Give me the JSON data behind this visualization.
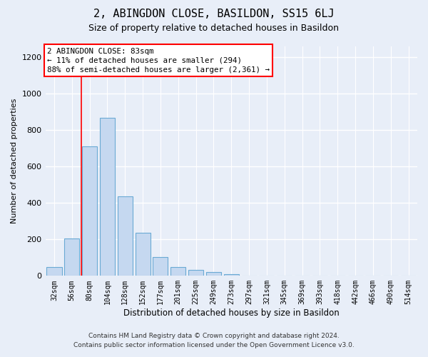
{
  "title": "2, ABINGDON CLOSE, BASILDON, SS15 6LJ",
  "subtitle": "Size of property relative to detached houses in Basildon",
  "xlabel": "Distribution of detached houses by size in Basildon",
  "ylabel": "Number of detached properties",
  "footer_line1": "Contains HM Land Registry data © Crown copyright and database right 2024.",
  "footer_line2": "Contains public sector information licensed under the Open Government Licence v3.0.",
  "categories": [
    "32sqm",
    "56sqm",
    "80sqm",
    "104sqm",
    "128sqm",
    "152sqm",
    "177sqm",
    "201sqm",
    "225sqm",
    "249sqm",
    "273sqm",
    "297sqm",
    "321sqm",
    "345sqm",
    "369sqm",
    "393sqm",
    "418sqm",
    "442sqm",
    "466sqm",
    "490sqm",
    "514sqm"
  ],
  "values": [
    48,
    207,
    710,
    868,
    435,
    235,
    104,
    48,
    33,
    22,
    10,
    0,
    0,
    0,
    0,
    0,
    0,
    0,
    0,
    0,
    0
  ],
  "bar_color": "#c5d8f0",
  "bar_edge_color": "#6aaad4",
  "ylim": [
    0,
    1260
  ],
  "yticks": [
    0,
    200,
    400,
    600,
    800,
    1000,
    1200
  ],
  "property_label": "2 ABINGDON CLOSE: 83sqm",
  "pct_smaller_label": "← 11% of detached houses are smaller (294)",
  "pct_larger_label": "88% of semi-detached houses are larger (2,361) →",
  "vline_x_index": 1.55,
  "background_color": "#e8eef8",
  "plot_bg_color": "#e8eef8",
  "grid_color": "#ffffff"
}
